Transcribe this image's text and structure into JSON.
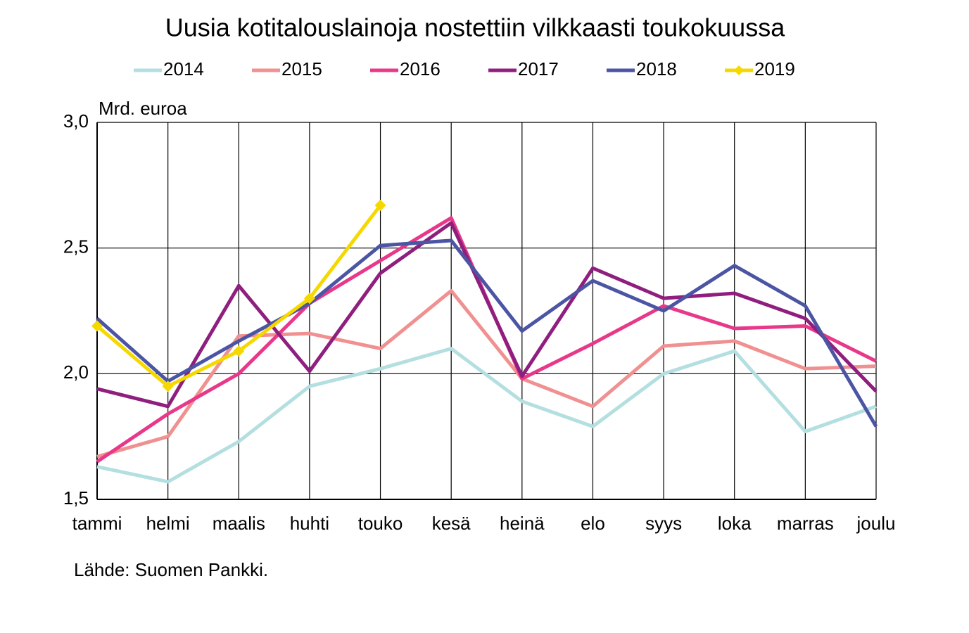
{
  "chart_data": {
    "type": "line",
    "title": "Uusia kotitalouslainoja nostettiin vilkkaasti toukokuussa",
    "y_label": "Mrd. euroa",
    "source": "Lähde: Suomen Pankki.",
    "categories": [
      "tammi",
      "helmi",
      "maalis",
      "huhti",
      "touko",
      "kesä",
      "heinä",
      "elo",
      "syys",
      "loka",
      "marras",
      "joulu"
    ],
    "ylim": [
      1.5,
      3.0
    ],
    "yticks": [
      {
        "value": 1.5,
        "label": "1,5"
      },
      {
        "value": 2.0,
        "label": "2,0"
      },
      {
        "value": 2.5,
        "label": "2,5"
      },
      {
        "value": 3.0,
        "label": "3,0"
      }
    ],
    "grid": true,
    "legend": "top",
    "series": [
      {
        "name": "2014",
        "color": "#b4dfe0",
        "values": [
          1.63,
          1.57,
          1.73,
          1.95,
          2.02,
          2.1,
          1.89,
          1.79,
          2.0,
          2.09,
          1.77,
          1.87
        ]
      },
      {
        "name": "2015",
        "color": "#f09090",
        "values": [
          1.67,
          1.75,
          2.15,
          2.16,
          2.1,
          2.33,
          1.98,
          1.87,
          2.11,
          2.13,
          2.02,
          2.03
        ]
      },
      {
        "name": "2016",
        "color": "#e8388a",
        "values": [
          1.65,
          1.84,
          2.0,
          2.28,
          2.45,
          2.62,
          1.98,
          2.12,
          2.27,
          2.18,
          2.19,
          2.05
        ]
      },
      {
        "name": "2017",
        "color": "#8f1f7e",
        "values": [
          1.94,
          1.87,
          2.35,
          2.01,
          2.4,
          2.6,
          1.99,
          2.42,
          2.3,
          2.32,
          2.22,
          1.93
        ]
      },
      {
        "name": "2018",
        "color": "#4b55a4",
        "values": [
          2.22,
          1.97,
          2.13,
          2.28,
          2.51,
          2.53,
          2.17,
          2.37,
          2.25,
          2.43,
          2.27,
          1.79
        ]
      },
      {
        "name": "2019",
        "color": "#f5d800",
        "marker": "diamond",
        "values": [
          2.19,
          1.95,
          2.09,
          2.3,
          2.67,
          null,
          null,
          null,
          null,
          null,
          null,
          null
        ]
      }
    ]
  }
}
